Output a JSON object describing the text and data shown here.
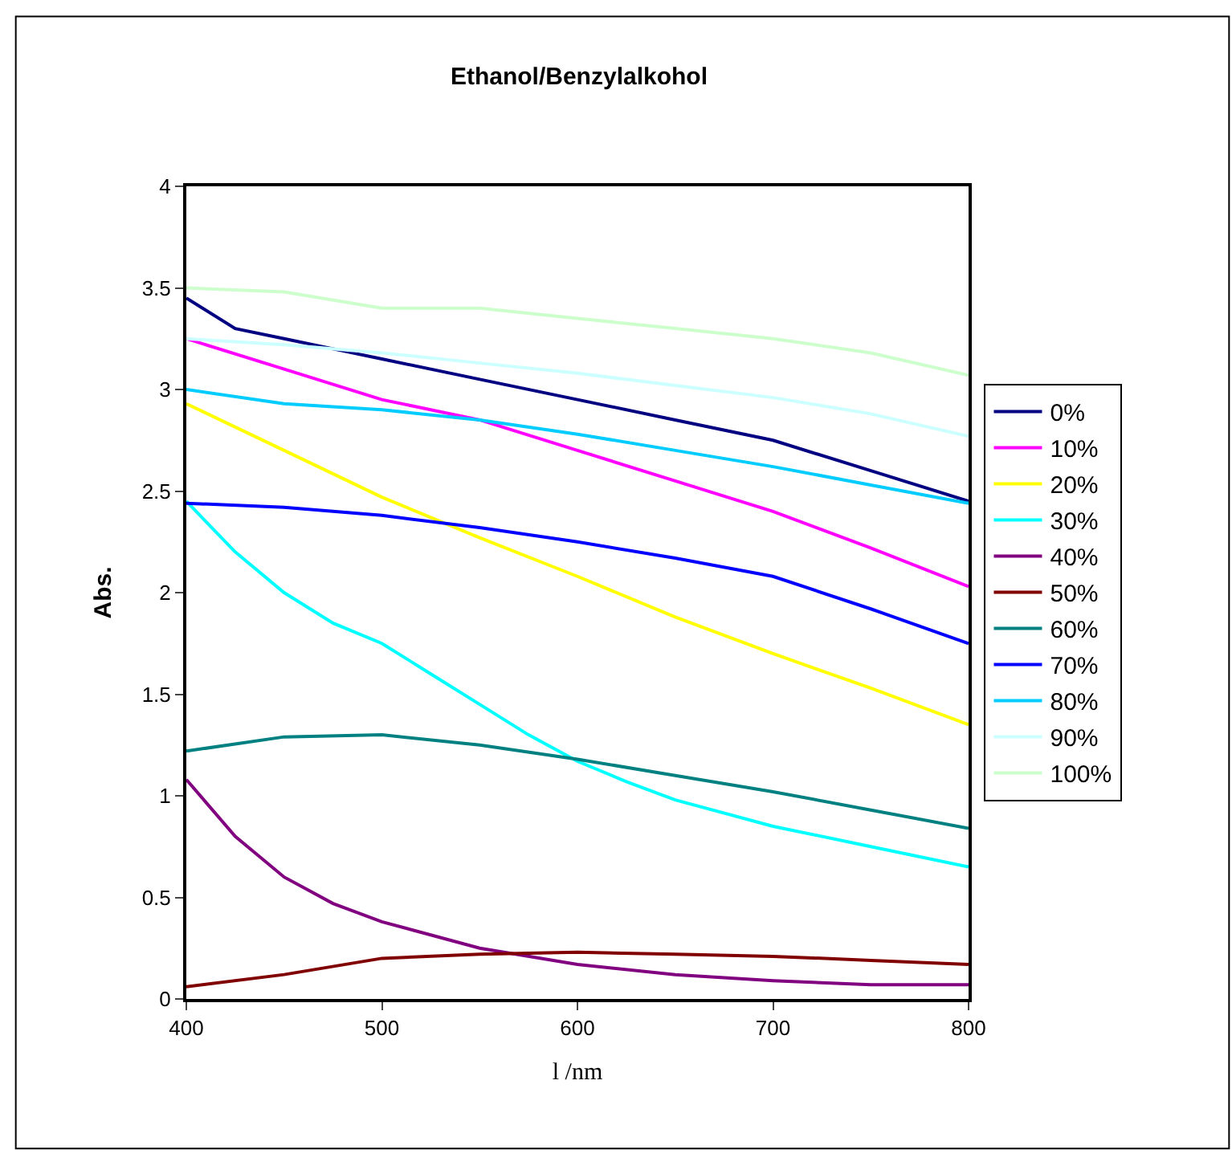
{
  "chart_data": {
    "type": "line",
    "title": "Ethanol/Benzylalkohol",
    "xlabel": "l /nm",
    "ylabel": "Abs.",
    "xlim": [
      400,
      800
    ],
    "xticks": [
      400,
      500,
      600,
      700,
      800
    ],
    "ylim": [
      0,
      4
    ],
    "yticks": [
      0,
      0.5,
      1,
      1.5,
      2,
      2.5,
      3,
      3.5,
      4
    ],
    "legend": "right",
    "marker": "none",
    "line_style": "solid",
    "series": [
      {
        "name": "0%",
        "color": "#000080",
        "x": [
          400,
          425,
          450,
          475,
          500,
          550,
          600,
          650,
          700,
          750,
          800
        ],
        "values": [
          3.45,
          3.3,
          3.25,
          3.2,
          3.15,
          3.05,
          2.95,
          2.85,
          2.75,
          2.6,
          2.45
        ]
      },
      {
        "name": "10%",
        "color": "#ff00ff",
        "x": [
          400,
          450,
          500,
          550,
          600,
          650,
          700,
          750,
          800
        ],
        "values": [
          3.25,
          3.1,
          2.95,
          2.85,
          2.7,
          2.55,
          2.4,
          2.22,
          2.03
        ]
      },
      {
        "name": "20%",
        "color": "#ffff00",
        "x": [
          400,
          450,
          500,
          550,
          600,
          650,
          700,
          750,
          800
        ],
        "values": [
          2.93,
          2.7,
          2.47,
          2.27,
          2.08,
          1.88,
          1.7,
          1.53,
          1.35
        ]
      },
      {
        "name": "30%",
        "color": "#00ffff",
        "x": [
          400,
          425,
          450,
          475,
          500,
          525,
          550,
          575,
          600,
          625,
          650,
          700,
          750,
          800
        ],
        "values": [
          2.45,
          2.2,
          2.0,
          1.85,
          1.75,
          1.6,
          1.45,
          1.3,
          1.17,
          1.07,
          0.98,
          0.85,
          0.75,
          0.65
        ]
      },
      {
        "name": "40%",
        "color": "#800080",
        "x": [
          400,
          425,
          450,
          475,
          500,
          550,
          600,
          650,
          700,
          750,
          800
        ],
        "values": [
          1.08,
          0.8,
          0.6,
          0.47,
          0.38,
          0.25,
          0.17,
          0.12,
          0.09,
          0.07,
          0.07
        ]
      },
      {
        "name": "50%",
        "color": "#800000",
        "x": [
          400,
          450,
          500,
          550,
          600,
          650,
          700,
          750,
          800
        ],
        "values": [
          0.06,
          0.12,
          0.2,
          0.22,
          0.23,
          0.22,
          0.21,
          0.19,
          0.17
        ]
      },
      {
        "name": "60%",
        "color": "#008080",
        "x": [
          400,
          450,
          500,
          550,
          600,
          650,
          700,
          750,
          800
        ],
        "values": [
          1.22,
          1.29,
          1.3,
          1.25,
          1.18,
          1.1,
          1.02,
          0.93,
          0.84
        ]
      },
      {
        "name": "70%",
        "color": "#0000ff",
        "x": [
          400,
          450,
          500,
          550,
          600,
          650,
          700,
          750,
          800
        ],
        "values": [
          2.44,
          2.42,
          2.38,
          2.32,
          2.25,
          2.17,
          2.08,
          1.92,
          1.75
        ]
      },
      {
        "name": "80%",
        "color": "#00ccff",
        "x": [
          400,
          450,
          500,
          550,
          600,
          650,
          700,
          750,
          800
        ],
        "values": [
          3.0,
          2.93,
          2.9,
          2.85,
          2.78,
          2.7,
          2.62,
          2.53,
          2.44
        ]
      },
      {
        "name": "90%",
        "color": "#ccffff",
        "x": [
          400,
          450,
          500,
          550,
          600,
          650,
          700,
          750,
          800
        ],
        "values": [
          3.25,
          3.22,
          3.18,
          3.13,
          3.08,
          3.02,
          2.96,
          2.88,
          2.77
        ]
      },
      {
        "name": "100%",
        "color": "#ccffcc",
        "x": [
          400,
          450,
          500,
          550,
          600,
          650,
          700,
          750,
          800
        ],
        "values": [
          3.5,
          3.48,
          3.4,
          3.4,
          3.35,
          3.3,
          3.25,
          3.18,
          3.07
        ]
      }
    ]
  }
}
